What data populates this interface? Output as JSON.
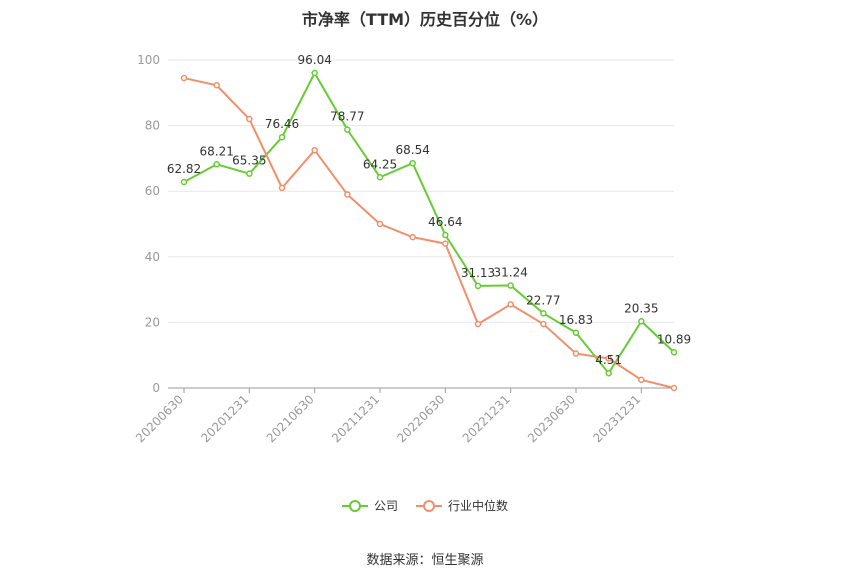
{
  "chart_data": {
    "type": "line",
    "title": "市净率（TTM）历史百分位（%）",
    "ylim": [
      0,
      100
    ],
    "yticks": [
      0,
      20,
      40,
      60,
      80,
      100
    ],
    "x": [
      "20200630",
      "20200930",
      "20201231",
      "20210331",
      "20210630",
      "20210930",
      "20211231",
      "20220331",
      "20220630",
      "20220930",
      "20221231",
      "20230331",
      "20230630",
      "20230930",
      "20231231",
      "20240331"
    ],
    "xtick_labels": [
      "20200630",
      "20201231",
      "20210630",
      "20211231",
      "20220630",
      "20221231",
      "20230630",
      "20231231"
    ],
    "grid": true,
    "legend_position": "bottom",
    "series": [
      {
        "name": "公司",
        "color": "#66cc33",
        "values": [
          62.82,
          68.21,
          65.35,
          76.46,
          96.04,
          78.77,
          64.25,
          68.54,
          46.64,
          31.13,
          31.24,
          22.77,
          16.83,
          4.51,
          20.35,
          10.89
        ],
        "labels": [
          "62.82",
          "68.21",
          "65.35",
          "76.46",
          "96.04",
          "78.77",
          "64.25",
          "68.54",
          "46.64",
          "31.13",
          "31.24",
          "22.77",
          "16.83",
          "4.51",
          "20.35",
          "10.89"
        ]
      },
      {
        "name": "行业中位数",
        "color": "#f0906a",
        "values": [
          94.5,
          92.3,
          82.0,
          61.0,
          72.5,
          59.0,
          50.0,
          46.0,
          44.0,
          19.5,
          25.5,
          19.5,
          10.5,
          9.0,
          2.5,
          0.0
        ]
      }
    ]
  },
  "source_text": "数据来源：恒生聚源"
}
